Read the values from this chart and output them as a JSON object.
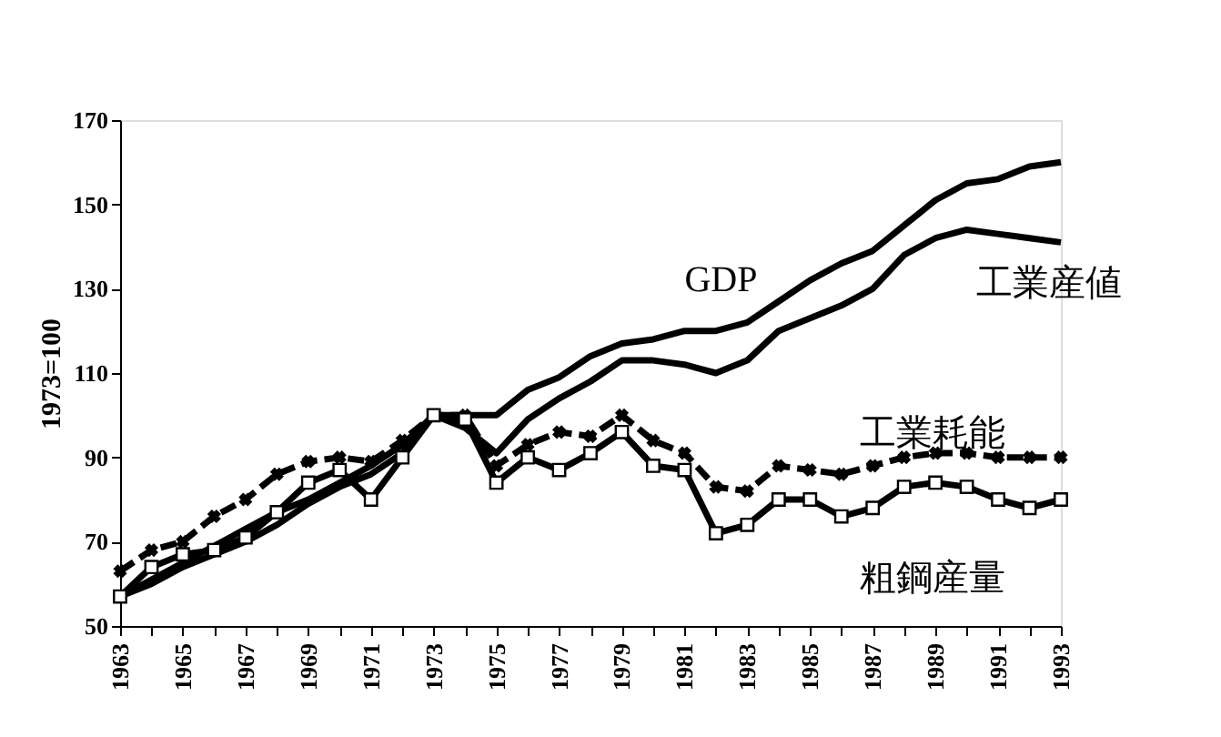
{
  "chart_data": {
    "type": "line",
    "ylabel": "1973=100",
    "legend": false,
    "grid": false,
    "x": [
      1963,
      1964,
      1965,
      1966,
      1967,
      1968,
      1969,
      1970,
      1971,
      1972,
      1973,
      1974,
      1975,
      1976,
      1977,
      1978,
      1979,
      1980,
      1981,
      1982,
      1983,
      1984,
      1985,
      1986,
      1987,
      1988,
      1989,
      1990,
      1991,
      1992,
      1993
    ],
    "xlim": [
      1963,
      1993
    ],
    "xticks": [
      1963,
      {
        "value": 1964,
        "label": null
      },
      1965,
      {
        "value": 1966,
        "label": null
      },
      1967,
      {
        "value": 1968,
        "label": null
      },
      1969,
      {
        "value": 1970,
        "label": null
      },
      1971,
      {
        "value": 1972,
        "label": null
      },
      1973,
      {
        "value": 1974,
        "label": null
      },
      1975,
      {
        "value": 1976,
        "label": null
      },
      1977,
      {
        "value": 1978,
        "label": null
      },
      1979,
      {
        "value": 1980,
        "label": null
      },
      1981,
      {
        "value": 1982,
        "label": null
      },
      1983,
      {
        "value": 1984,
        "label": null
      },
      1985,
      {
        "value": 1986,
        "label": null
      },
      1987,
      {
        "value": 1988,
        "label": null
      },
      1989,
      {
        "value": 1990,
        "label": null
      },
      1991,
      {
        "value": 1992,
        "label": null
      },
      1993
    ],
    "ylim": [
      50,
      170
    ],
    "yticks": [
      50,
      70,
      90,
      110,
      130,
      150,
      170
    ],
    "series": [
      {
        "name": "GDP",
        "color": "#000000",
        "line_style": "solid",
        "marker": "none",
        "values": [
          57,
          61,
          65,
          69,
          73,
          77,
          80,
          84,
          88,
          93,
          100,
          100,
          100,
          106,
          109,
          114,
          117,
          118,
          120,
          120,
          122,
          127,
          132,
          136,
          139,
          145,
          151,
          155,
          156,
          159,
          160
        ]
      },
      {
        "name": "工業産値",
        "color": "#000000",
        "line_style": "solid",
        "marker": "none",
        "values": [
          57,
          60,
          64,
          67,
          70,
          74,
          79,
          83,
          86,
          91,
          100,
          97,
          91,
          99,
          104,
          108,
          113,
          113,
          112,
          110,
          113,
          120,
          123,
          126,
          130,
          138,
          142,
          144,
          143,
          142,
          141
        ]
      },
      {
        "name": "工業耗能",
        "color": "#000000",
        "line_style": "dashed",
        "marker": "cross",
        "values": [
          63,
          68,
          70,
          76,
          80,
          86,
          89,
          90,
          89,
          94,
          100,
          100,
          88,
          93,
          96,
          95,
          100,
          94,
          91,
          83,
          82,
          88,
          87,
          86,
          88,
          90,
          91,
          91,
          90,
          90,
          90
        ]
      },
      {
        "name": "粗鋼産量",
        "color": "#000000",
        "line_style": "solid",
        "marker": "square",
        "values": [
          57,
          64,
          67,
          68,
          71,
          77,
          84,
          87,
          80,
          90,
          100,
          99,
          84,
          90,
          87,
          91,
          96,
          88,
          87,
          72,
          74,
          80,
          80,
          76,
          78,
          83,
          84,
          83,
          80,
          78,
          80
        ]
      }
    ]
  }
}
